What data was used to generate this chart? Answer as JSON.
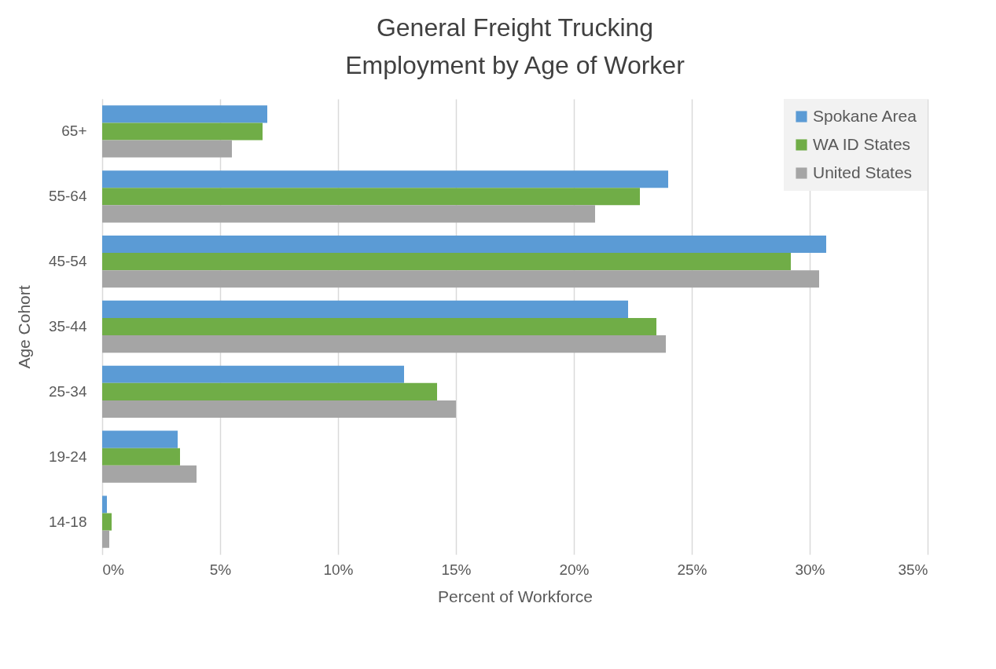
{
  "chart_data": {
    "type": "bar",
    "orientation": "horizontal",
    "title": "General Freight Trucking\nEmployment by Age of Worker",
    "xlabel": "Percent of Workforce",
    "ylabel": "Age Cohort",
    "categories": [
      "65+",
      "55-64",
      "45-54",
      "35-44",
      "25-34",
      "19-24",
      "14-18"
    ],
    "series": [
      {
        "name": "Spokane Area",
        "color": "#5b9bd5",
        "values": [
          7.0,
          24.0,
          30.7,
          22.3,
          12.8,
          3.2,
          0.2
        ]
      },
      {
        "name": "WA ID States",
        "color": "#70ad47",
        "values": [
          6.8,
          22.8,
          29.2,
          23.5,
          14.2,
          3.3,
          0.4
        ]
      },
      {
        "name": "United States",
        "color": "#a5a5a5",
        "values": [
          5.5,
          20.9,
          30.4,
          23.9,
          15.0,
          4.0,
          0.3
        ]
      }
    ],
    "xlim": [
      0,
      35
    ],
    "xticks": [
      {
        "value": 0,
        "label": "0%"
      },
      {
        "value": 5,
        "label": "5%"
      },
      {
        "value": 10,
        "label": "10%"
      },
      {
        "value": 15,
        "label": "15%"
      },
      {
        "value": 20,
        "label": "20%"
      },
      {
        "value": 25,
        "label": "25%"
      },
      {
        "value": 30,
        "label": "30%"
      },
      {
        "value": 35,
        "label": "35%"
      }
    ],
    "grid": "x",
    "legend": "top right"
  }
}
